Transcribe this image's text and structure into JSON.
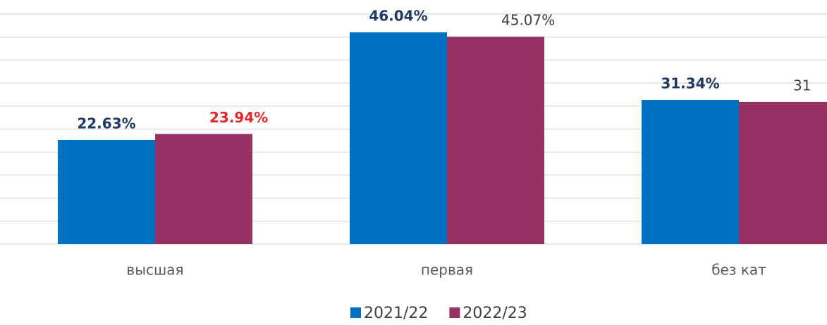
{
  "chart_data": {
    "type": "bar",
    "categories": [
      "высшая",
      "первая",
      "без кат"
    ],
    "series": [
      {
        "name": "2021/22",
        "color": "#0070c0",
        "values": [
          22.63,
          46.04,
          31.34
        ],
        "value_labels": [
          "22.63%",
          "46.04%",
          "31.34%"
        ],
        "label_colors": [
          "#1f3864",
          "#1f3864",
          "#1f3864"
        ]
      },
      {
        "name": "2022/23",
        "color": "#953163",
        "values": [
          23.94,
          45.07,
          30.9
        ],
        "value_labels": [
          "23.94%",
          "45.07%",
          "31"
        ],
        "label_colors": [
          "#e8262a",
          "#404040",
          "#404040"
        ]
      }
    ],
    "ylim": [
      0,
      50
    ],
    "yticks": [
      0,
      5,
      10,
      15,
      20,
      25,
      30,
      35,
      40,
      45,
      50
    ],
    "grid": true,
    "legend": "bottom"
  }
}
